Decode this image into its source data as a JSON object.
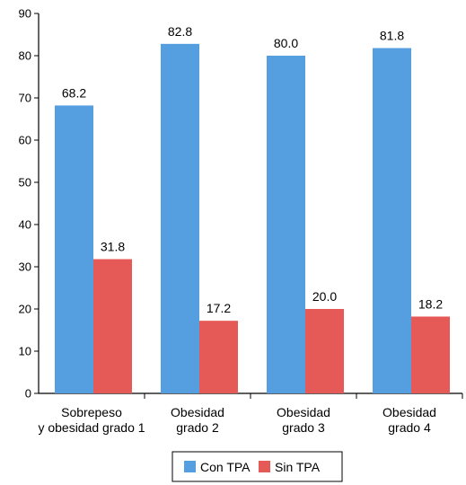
{
  "chart_data": {
    "type": "bar",
    "categories": [
      [
        "Sobrepeso",
        "y obesidad grado 1"
      ],
      [
        "Obesidad",
        "grado 2"
      ],
      [
        "Obesidad",
        "grado 3"
      ],
      [
        "Obesidad",
        "grado 4"
      ]
    ],
    "series": [
      {
        "name": "Con TPA",
        "color": "#559ee0",
        "values": [
          68.2,
          82.8,
          80.0,
          81.8
        ],
        "labels": [
          "68.2",
          "82.8",
          "80.0",
          "81.8"
        ]
      },
      {
        "name": "Sin TPA",
        "color": "#e55a56",
        "values": [
          31.8,
          17.2,
          20.0,
          18.2
        ],
        "labels": [
          "31.8",
          "17.2",
          "20.0",
          "18.2"
        ]
      }
    ],
    "title": "",
    "xlabel": "",
    "ylabel": "",
    "ylim": [
      0,
      90
    ],
    "yticks": [
      0,
      10,
      20,
      30,
      40,
      50,
      60,
      70,
      80,
      90
    ],
    "grid": false,
    "legend": "bottom"
  }
}
